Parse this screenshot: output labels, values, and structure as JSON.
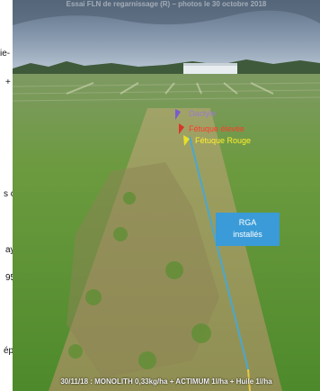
{
  "document_fragments": [
    "ie-",
    "+ p",
    "s c",
    "ay",
    "95",
    "ép"
  ],
  "photo": {
    "caption_top": "Essai FLN de regarnissage (R) – photos le 30 octobre 2018",
    "caption_bottom": "30/11/18 : MONOLITH 0,33kg/ha + ACTIMUM 1l/ha + Huile 1l/ha"
  },
  "annotations": {
    "labels": [
      {
        "text": "Dactyle",
        "color": "#9b7bd1"
      },
      {
        "text": "Fétuque élevée",
        "color": "#ff3b2a"
      },
      {
        "text": "Fétuque Rouge",
        "color": "#ffef2a"
      }
    ],
    "box": {
      "line1": "RGA",
      "line2": "installés",
      "color": "#3a9bd8"
    }
  }
}
